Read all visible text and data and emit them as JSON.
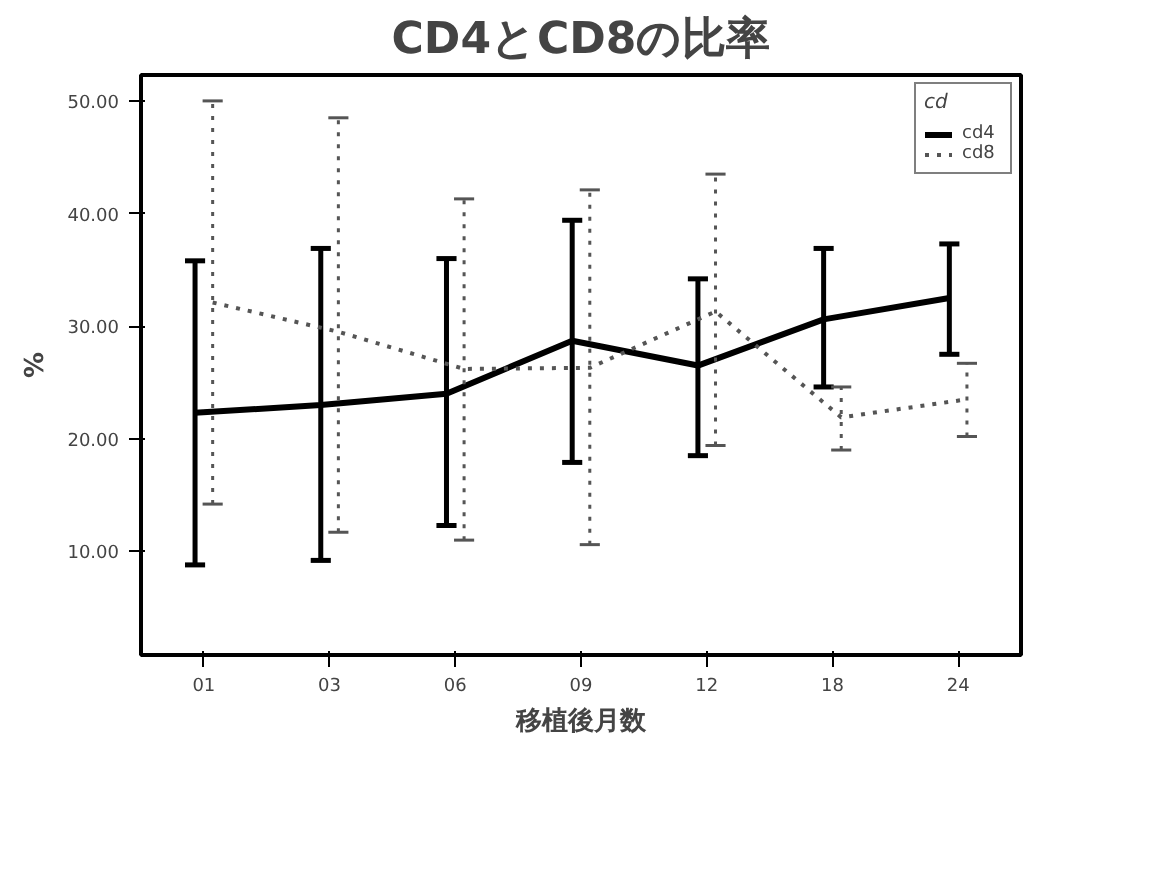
{
  "chart_data": {
    "type": "line",
    "title": "CD4とCD8の比率",
    "xlabel": "移植後月数",
    "ylabel": "%",
    "legend_title": "cd",
    "categories": [
      "01",
      "03",
      "06",
      "09",
      "12",
      "18",
      "24"
    ],
    "series": [
      {
        "name": "cd4",
        "color": "#000000",
        "line_style": "solid",
        "values": [
          22.3,
          23.0,
          24.0,
          28.7,
          26.5,
          30.6,
          32.5
        ],
        "errors": [
          [
            8.8,
            35.8
          ],
          [
            9.2,
            36.9
          ],
          [
            12.3,
            36.0
          ],
          [
            17.9,
            39.4
          ],
          [
            18.5,
            34.2
          ],
          [
            24.6,
            36.9
          ],
          [
            27.5,
            37.3
          ]
        ]
      },
      {
        "name": "cd8",
        "color": "#555555",
        "line_style": "dotted",
        "values": [
          32.1,
          29.5,
          26.2,
          26.3,
          31.3,
          21.9,
          23.5
        ],
        "errors": [
          [
            14.2,
            50.0
          ],
          [
            11.7,
            48.5
          ],
          [
            11.0,
            41.3
          ],
          [
            10.6,
            42.1
          ],
          [
            19.4,
            43.5
          ],
          [
            19.0,
            24.6
          ],
          [
            20.2,
            26.7
          ]
        ]
      }
    ],
    "ylim": [
      0.8,
      52.3
    ],
    "yticks": [
      {
        "value": 10,
        "label": "10.00"
      },
      {
        "value": 20,
        "label": "20.00"
      },
      {
        "value": 30,
        "label": "30.00"
      },
      {
        "value": 40,
        "label": "40.00"
      },
      {
        "value": 50,
        "label": "50.00"
      }
    ],
    "grid": false,
    "legend": "top right",
    "marker": "none"
  }
}
